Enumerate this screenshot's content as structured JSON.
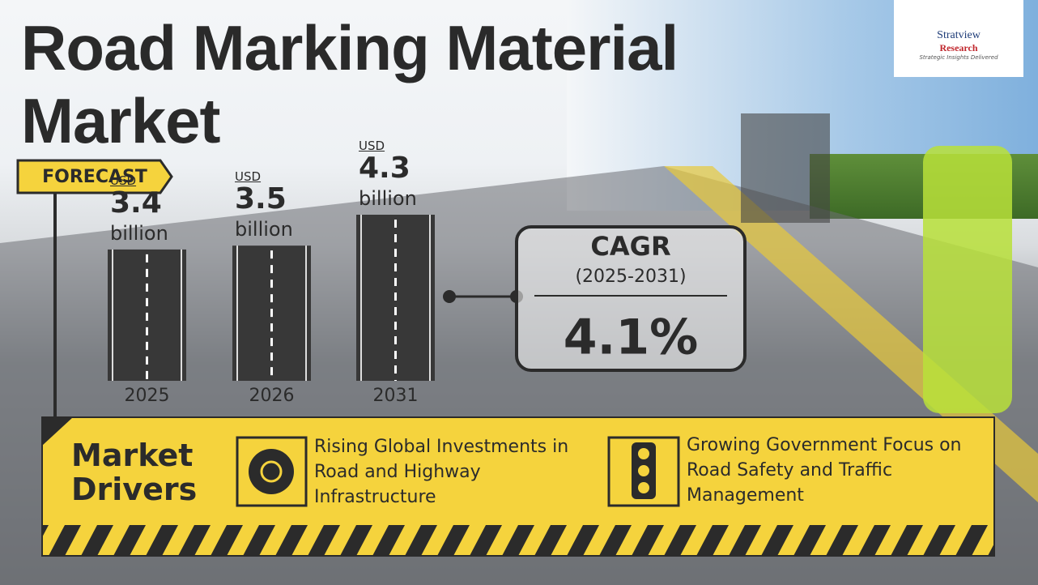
{
  "title": "Road Marking Material Market",
  "logo": {
    "name": "Stratview",
    "sub": "Research",
    "tagline": "Strategic Insights Delivered"
  },
  "forecast_label": "FORECAST",
  "chart_data": {
    "type": "bar",
    "categories": [
      "2025",
      "2026",
      "2031"
    ],
    "values": [
      3.4,
      3.5,
      4.3
    ],
    "unit_prefix": "USD",
    "unit_suffix": "billion",
    "color": "#383838"
  },
  "cagr": {
    "label": "CAGR",
    "period": "(2025-2031)",
    "value": "4.1%"
  },
  "drivers": {
    "heading": "Market Drivers",
    "items": [
      "Rising Global Investments in Road and Highway Infrastructure",
      "Growing Government Focus on Road Safety and Traffic Management"
    ]
  }
}
